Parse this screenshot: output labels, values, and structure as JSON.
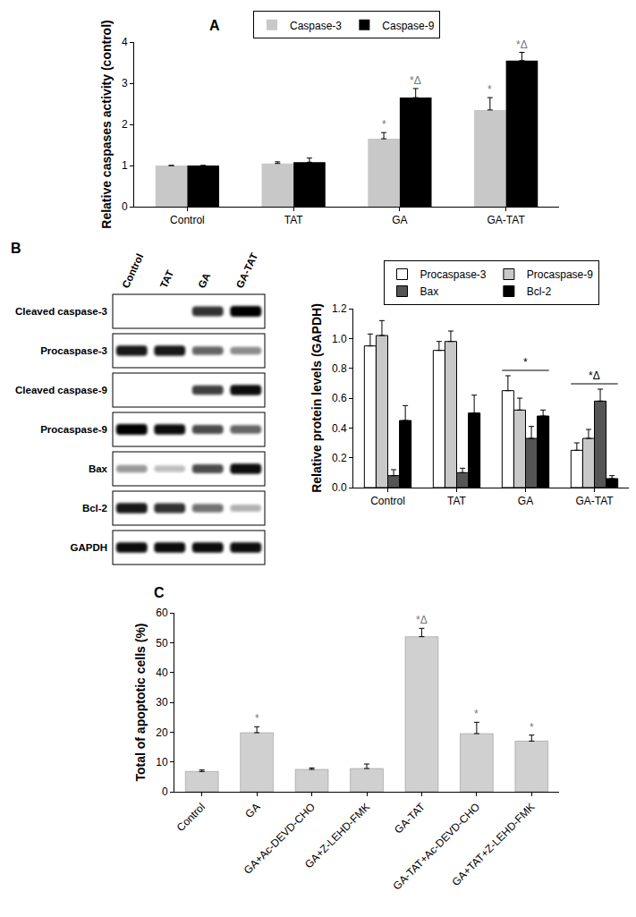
{
  "chart_data": [
    {
      "type": "bar",
      "title": "A",
      "categories": [
        "Control",
        "TAT",
        "GA",
        "GA-TAT"
      ],
      "ylabel": "Relative caspases activity (control)",
      "series": [
        {
          "name": "Caspase-3",
          "color": "#c8c8c8",
          "values": [
            1,
            1.05,
            1.65,
            2.35
          ],
          "errors": [
            null,
            0.04,
            0.15,
            0.3
          ],
          "annotations": [
            null,
            null,
            "*",
            "*"
          ]
        },
        {
          "name": "Caspase-9",
          "color": "#000000",
          "values": [
            1,
            1.08,
            2.65,
            3.55
          ],
          "errors": [
            null,
            0.1,
            0.22,
            0.2
          ],
          "annotations": [
            null,
            null,
            "*Δ",
            "*Δ"
          ]
        }
      ],
      "ylim": [
        0,
        4
      ],
      "yticks": [
        0,
        1,
        2,
        3,
        4
      ],
      "legend": "top",
      "grid": false
    },
    {
      "type": "bar",
      "title": "B",
      "categories": [
        "Control",
        "TAT",
        "GA",
        "GA-TAT"
      ],
      "ylabel": "Relative protein levels (GAPDH)",
      "series": [
        {
          "name": "Procaspase-3",
          "color": "#ffffff",
          "values": [
            0.95,
            0.92,
            0.65,
            0.25
          ],
          "errors": [
            0.08,
            0.06,
            0.1,
            0.05
          ]
        },
        {
          "name": "Procaspase-9",
          "color": "#c8c8c8",
          "values": [
            1.02,
            0.98,
            0.52,
            0.33
          ],
          "errors": [
            0.1,
            0.07,
            0.08,
            0.06
          ]
        },
        {
          "name": "Bax",
          "color": "#555555",
          "values": [
            0.08,
            0.1,
            0.33,
            0.58
          ],
          "errors": [
            0.04,
            0.03,
            0.08,
            0.08
          ]
        },
        {
          "name": "Bcl-2",
          "color": "#000000",
          "values": [
            0.45,
            0.5,
            0.48,
            0.06
          ],
          "errors": [
            0.1,
            0.12,
            0.04,
            0.02
          ]
        }
      ],
      "group_annotations": [
        null,
        null,
        "*",
        "*Δ"
      ],
      "ylim": [
        0,
        1.2
      ],
      "yticks": [
        {
          "value": 0,
          "label": "0.0"
        },
        0.2,
        0.4,
        0.6,
        0.8,
        {
          "value": 1,
          "label": "1.0"
        },
        1.2
      ],
      "legend": "top",
      "grid": false
    },
    {
      "type": "bar",
      "title": "C",
      "categories": [
        "Control",
        "GA",
        "GA+Ac-DEVD-CHO",
        "GA+Z-LEHD-FMK",
        "GA-TAT",
        "GA-TAT+Ac-DEVD-CHO",
        "GA+TAT+Z-LEHD-FMK"
      ],
      "ylabel": "Total of apoptotic cells (%)",
      "values": [
        6.8,
        19.8,
        7.5,
        7.8,
        52,
        19.5,
        17
      ],
      "errors": [
        0.5,
        2,
        0.5,
        1.5,
        2.8,
        3.8,
        2
      ],
      "annotations": [
        null,
        "*",
        null,
        null,
        "*Δ",
        "*",
        "*"
      ],
      "color": "#d0d0d0",
      "ylim": [
        0,
        60
      ],
      "yticks": [
        0,
        10,
        20,
        30,
        40,
        50,
        60
      ],
      "grid": false
    }
  ],
  "blot": {
    "lanes": [
      "Control",
      "TAT",
      "GA",
      "GA-TAT"
    ],
    "rows": [
      {
        "label": "Cleaved caspase-3",
        "intensity": [
          0,
          0,
          0.8,
          1
        ]
      },
      {
        "label": "Procaspase-3",
        "intensity": [
          0.9,
          0.9,
          0.6,
          0.45
        ]
      },
      {
        "label": "Cleaved caspase-9",
        "intensity": [
          0,
          0,
          0.75,
          0.95
        ]
      },
      {
        "label": "Procaspase-9",
        "intensity": [
          1,
          0.95,
          0.7,
          0.6
        ]
      },
      {
        "label": "Bax",
        "intensity": [
          0.4,
          0.25,
          0.7,
          0.95
        ]
      },
      {
        "label": "Bcl-2",
        "intensity": [
          0.9,
          0.8,
          0.55,
          0.3
        ]
      },
      {
        "label": "GAPDH",
        "intensity": [
          0.95,
          0.95,
          0.95,
          0.95
        ]
      }
    ]
  }
}
